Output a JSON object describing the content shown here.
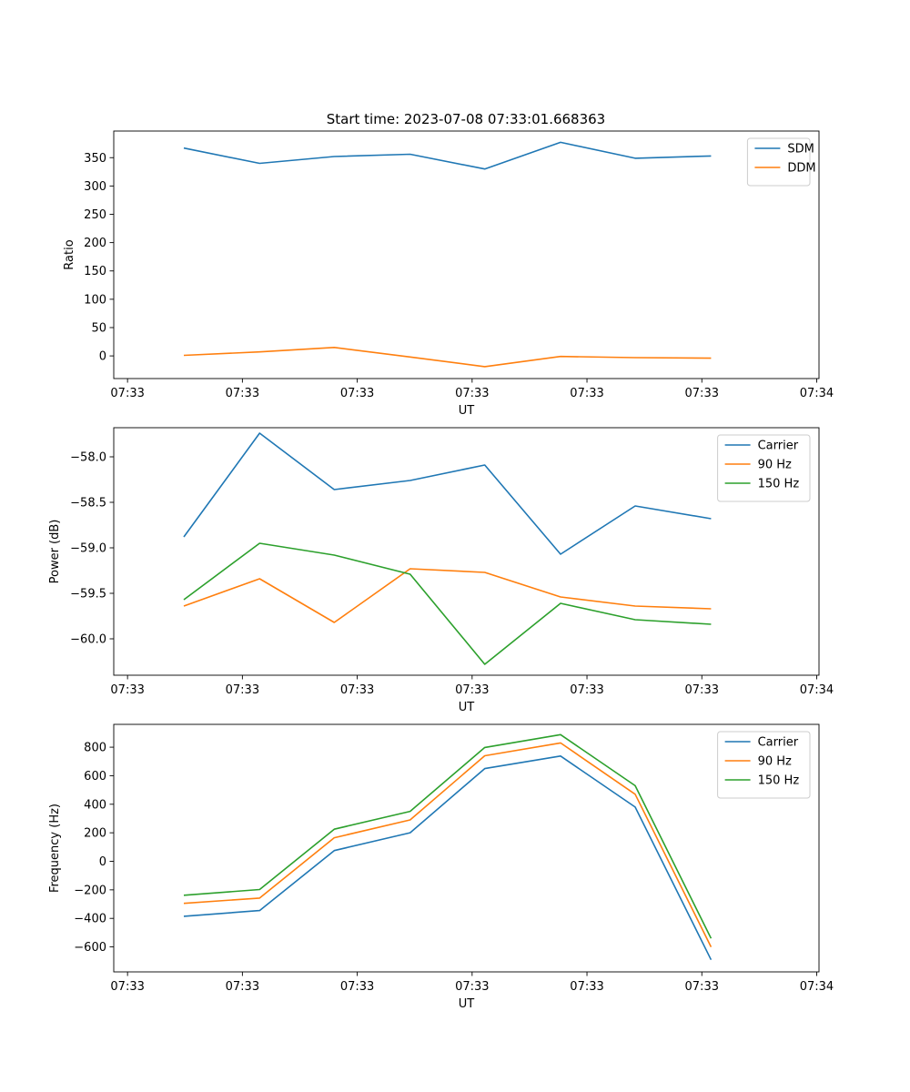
{
  "figure_title": "Start time: 2023-07-08 07:33:01.668363",
  "colors": {
    "c0": "#1f77b4",
    "c1": "#ff7f0e",
    "c2": "#2ca02c",
    "axis": "#000000",
    "legend_border": "#cccccc"
  },
  "chart_data": [
    {
      "type": "line",
      "title": "Start time: 2023-07-08 07:33:01.668363",
      "xlabel": "UT",
      "ylabel": "Ratio",
      "x_tick_labels": [
        "07:33",
        "07:33",
        "07:33",
        "07:33",
        "07:33",
        "07:33",
        "07:34"
      ],
      "x_tick_positions": [
        0,
        1,
        2,
        3,
        4,
        5,
        6
      ],
      "xlim": [
        -0.12,
        6.02
      ],
      "ylim": [
        -40,
        397
      ],
      "y_ticks": [
        0,
        50,
        100,
        150,
        200,
        250,
        300,
        350
      ],
      "y_tick_labels": [
        "0",
        "50",
        "100",
        "150",
        "200",
        "250",
        "300",
        "350"
      ],
      "legend_position": "top-right",
      "x": [
        0.49,
        1.15,
        1.8,
        2.46,
        3.11,
        3.77,
        4.42,
        5.08
      ],
      "series": [
        {
          "name": "SDM",
          "color": "#1f77b4",
          "values": [
            367,
            340,
            352,
            356,
            330,
            377,
            349,
            353
          ]
        },
        {
          "name": "DDM",
          "color": "#ff7f0e",
          "values": [
            1,
            7,
            15,
            -2,
            -19,
            -1,
            -3,
            -4
          ]
        }
      ]
    },
    {
      "type": "line",
      "title": "",
      "xlabel": "UT",
      "ylabel": "Power (dB)",
      "x_tick_labels": [
        "07:33",
        "07:33",
        "07:33",
        "07:33",
        "07:33",
        "07:33",
        "07:34"
      ],
      "x_tick_positions": [
        0,
        1,
        2,
        3,
        4,
        5,
        6
      ],
      "xlim": [
        -0.12,
        6.02
      ],
      "ylim": [
        -60.4,
        -57.68
      ],
      "y_ticks": [
        -60.0,
        -59.5,
        -59.0,
        -58.5,
        -58.0
      ],
      "y_tick_labels": [
        "−60.0",
        "−59.5",
        "−59.0",
        "−58.5",
        "−58.0"
      ],
      "legend_position": "top-right",
      "x": [
        0.49,
        1.15,
        1.8,
        2.46,
        3.11,
        3.77,
        4.42,
        5.08
      ],
      "series": [
        {
          "name": "Carrier",
          "color": "#1f77b4",
          "values": [
            -58.88,
            -57.74,
            -58.36,
            -58.26,
            -58.09,
            -59.07,
            -58.54,
            -58.68
          ]
        },
        {
          "name": "90 Hz",
          "color": "#ff7f0e",
          "values": [
            -59.64,
            -59.34,
            -59.82,
            -59.23,
            -59.27,
            -59.54,
            -59.64,
            -59.67
          ]
        },
        {
          "name": "150 Hz",
          "color": "#2ca02c",
          "values": [
            -59.57,
            -58.95,
            -59.08,
            -59.29,
            -60.28,
            -59.61,
            -59.79,
            -59.84
          ]
        }
      ]
    },
    {
      "type": "line",
      "title": "",
      "xlabel": "UT",
      "ylabel": "Frequency (Hz)",
      "x_tick_labels": [
        "07:33",
        "07:33",
        "07:33",
        "07:33",
        "07:33",
        "07:33",
        "07:34"
      ],
      "x_tick_positions": [
        0,
        1,
        2,
        3,
        4,
        5,
        6
      ],
      "xlim": [
        -0.12,
        6.02
      ],
      "ylim": [
        -775,
        960
      ],
      "y_ticks": [
        -600,
        -400,
        -200,
        0,
        200,
        400,
        600,
        800
      ],
      "y_tick_labels": [
        "−600",
        "−400",
        "−200",
        "0",
        "200",
        "400",
        "600",
        "800"
      ],
      "legend_position": "top-right",
      "x": [
        0.49,
        1.15,
        1.8,
        2.46,
        3.11,
        3.77,
        4.42,
        5.08
      ],
      "series": [
        {
          "name": "Carrier",
          "color": "#1f77b4",
          "values": [
            -385,
            -345,
            75,
            200,
            650,
            738,
            380,
            -690
          ]
        },
        {
          "name": "90 Hz",
          "color": "#ff7f0e",
          "values": [
            -295,
            -258,
            165,
            290,
            740,
            830,
            470,
            -600
          ]
        },
        {
          "name": "150 Hz",
          "color": "#2ca02c",
          "values": [
            -238,
            -198,
            225,
            350,
            798,
            888,
            530,
            -540
          ]
        }
      ]
    }
  ]
}
